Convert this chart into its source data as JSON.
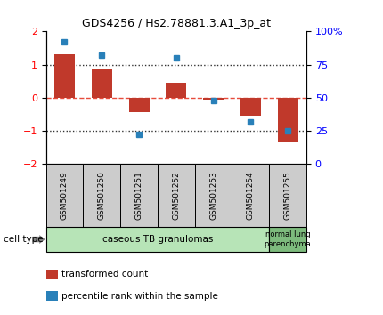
{
  "title": "GDS4256 / Hs2.78881.3.A1_3p_at",
  "samples": [
    "GSM501249",
    "GSM501250",
    "GSM501251",
    "GSM501252",
    "GSM501253",
    "GSM501254",
    "GSM501255"
  ],
  "transformed_count": [
    1.3,
    0.85,
    -0.45,
    0.45,
    -0.07,
    -0.55,
    -1.35
  ],
  "percentile_rank": [
    92,
    82,
    22,
    80,
    48,
    32,
    25
  ],
  "ylim_left": [
    -2,
    2
  ],
  "ylim_right": [
    0,
    100
  ],
  "yticks_left": [
    -2,
    -1,
    0,
    1,
    2
  ],
  "yticks_right": [
    0,
    25,
    50,
    75,
    100
  ],
  "ytick_labels_right": [
    "0",
    "25",
    "50",
    "75",
    "100%"
  ],
  "bar_color": "#c0392b",
  "dot_color": "#2980b9",
  "hline_color": "#e74c3c",
  "dotted_color": "#333333",
  "group1_label": "caseous TB granulomas",
  "group2_label": "normal lung\nparenchyma",
  "group1_color": "#b7e4b7",
  "group2_color": "#7dbb7d",
  "cell_type_label": "cell type",
  "legend_bar_label": "transformed count",
  "legend_dot_label": "percentile rank within the sample",
  "bar_width": 0.55,
  "sample_box_color": "#cccccc",
  "bg_color": "#ffffff"
}
